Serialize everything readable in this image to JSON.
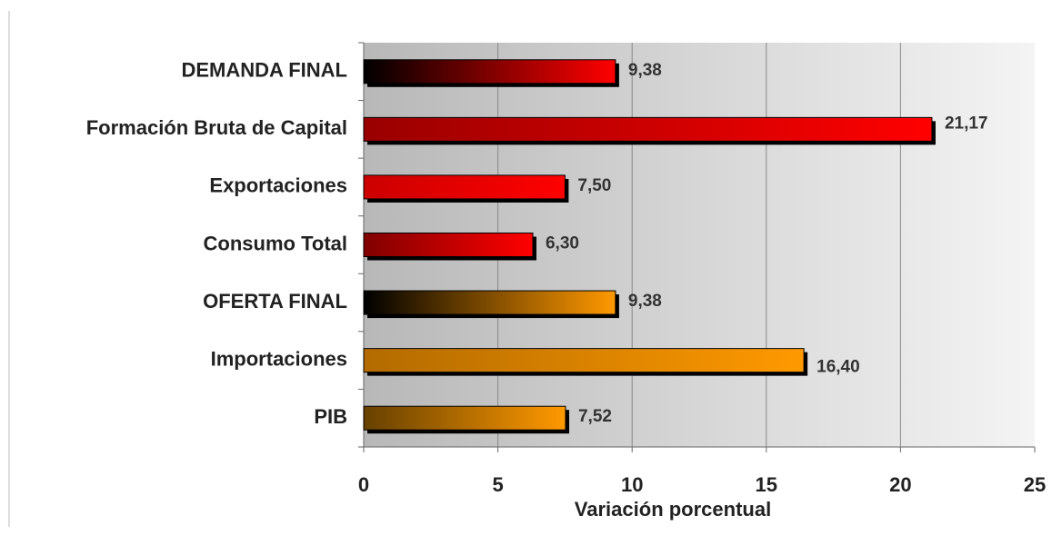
{
  "chart_data": {
    "type": "bar",
    "orientation": "horizontal",
    "x_label": "Variación porcentual",
    "categories": [
      "DEMANDA FINAL",
      "Formación Bruta de Capital",
      "Exportaciones",
      "Consumo Total",
      "OFERTA FINAL",
      "Importaciones",
      "PIB"
    ],
    "values": [
      9.38,
      21.17,
      7.5,
      6.3,
      9.38,
      16.4,
      7.52
    ],
    "value_labels": [
      "9,38",
      "21,17",
      "7,50",
      "6,30",
      "9,38",
      "16,40",
      "7,52"
    ],
    "colors": [
      "#ff0000",
      "#ff0000",
      "#ff0000",
      "#ff0000",
      "#ff9900",
      "#ff9900",
      "#ff9900"
    ],
    "gradient_from": [
      "#000000",
      "#990000",
      "#cc0000",
      "#800000",
      "#000000",
      "#b36b00",
      "#664000"
    ],
    "xlim": [
      0,
      25
    ],
    "xticks": [
      0,
      5,
      10,
      15,
      20,
      25
    ],
    "grid": true
  }
}
